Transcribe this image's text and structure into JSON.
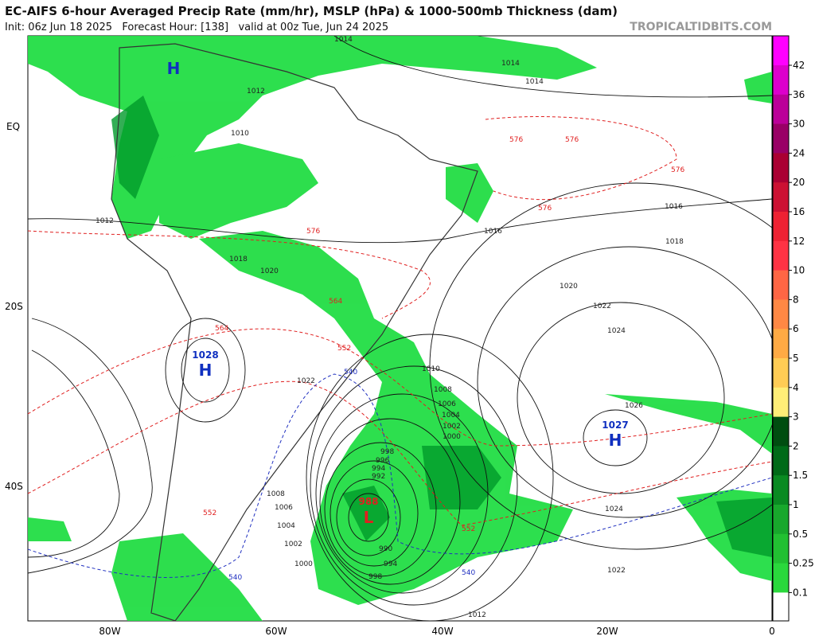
{
  "header": {
    "title": "EC-AIFS 6-hour Averaged Precip Rate (mm/hr), MSLP (hPa) & 1000-500mb Thickness (dam)",
    "subtitle": "Init: 06z Jun 18 2025   Forecast Hour: [138]   valid at 00z Tue, Jun 24 2025",
    "watermark": "TROPICALTIDBITS.COM"
  },
  "axes": {
    "lon_labels": [
      "80W",
      "60W",
      "40W",
      "20W",
      "0"
    ],
    "lat_labels": [
      "EQ",
      "20S",
      "40S"
    ]
  },
  "colorbar": {
    "labels": [
      42,
      36,
      30,
      24,
      20,
      16,
      12,
      10,
      8,
      6,
      5,
      4,
      3,
      2,
      1.5,
      1,
      0.5,
      0.25,
      0.1
    ]
  },
  "centers": [
    {
      "letter": "H",
      "value": "1028"
    },
    {
      "letter": "L",
      "value": "988"
    },
    {
      "letter": "H",
      "value": "1027"
    },
    {
      "letter": "H"
    }
  ],
  "isobar_labels": [
    "1014",
    "1014",
    "1014",
    "1016",
    "1018",
    "1020",
    "1022",
    "1024",
    "1026",
    "1024",
    "1022",
    "1012",
    "1012",
    "1016",
    "1010",
    "1008",
    "1006",
    "1004",
    "1002",
    "1000",
    "998",
    "996",
    "994",
    "992",
    "990",
    "994",
    "998",
    "1000",
    "1002",
    "1004",
    "1006",
    "1008",
    "1018",
    "1020",
    "1022",
    "1012",
    "1010"
  ],
  "thickness_labels": [
    "576",
    "576",
    "576",
    "576",
    "576",
    "564",
    "564",
    "552",
    "552",
    "552",
    "540",
    "540",
    "540"
  ]
}
